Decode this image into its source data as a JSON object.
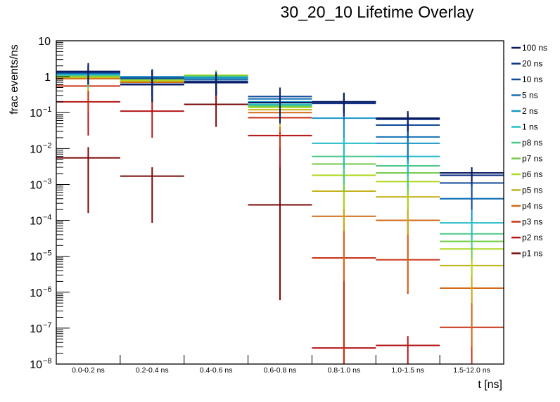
{
  "chart_data": {
    "type": "bar",
    "subtype": "histogram-with-error-bars",
    "title": "30_20_10 Lifetime Overlay",
    "xlabel": "t [ns]",
    "ylabel": "frac events/ns",
    "yscale": "log",
    "ylim": [
      1e-08,
      10
    ],
    "grid": false,
    "legend_position": "right",
    "categories": [
      "0.0-0.2 ns",
      "0.2-0.4 ns",
      "0.4-0.6 ns",
      "0.6-0.8 ns",
      "0.8-1.0 ns",
      "1.0-1.5 ns",
      "1.5-12.0 ns"
    ],
    "y_ticks": [
      {
        "value": 10,
        "base": "10",
        "exp": ""
      },
      {
        "value": 1,
        "base": "1",
        "exp": ""
      },
      {
        "value": 0.1,
        "base": "10",
        "exp": "−1"
      },
      {
        "value": 0.01,
        "base": "10",
        "exp": "−2"
      },
      {
        "value": 0.001,
        "base": "10",
        "exp": "−3"
      },
      {
        "value": 0.0001,
        "base": "10",
        "exp": "−4"
      },
      {
        "value": 1e-05,
        "base": "10",
        "exp": "−5"
      },
      {
        "value": 1e-06,
        "base": "10",
        "exp": "−6"
      },
      {
        "value": 1e-07,
        "base": "10",
        "exp": "−7"
      },
      {
        "value": 1e-08,
        "base": "10",
        "exp": "−8"
      }
    ],
    "series": [
      {
        "name": "100 ns",
        "color": "#0b1a5e",
        "values": [
          1.4,
          0.6,
          0.7,
          0.19,
          0.2,
          0.07,
          0.0021
        ],
        "err_hi": [
          2.4,
          1.6,
          1.3,
          0.5,
          0.36,
          0.11,
          0.003
        ],
        "err_lo": [
          0.6,
          0.2,
          0.3,
          0.05,
          0.1,
          0.03,
          0.0012
        ]
      },
      {
        "name": "20 ns",
        "color": "#0a2e82",
        "values": [
          1.35,
          0.62,
          0.68,
          0.19,
          0.18,
          0.065,
          0.0018
        ],
        "err_hi": [
          2.2,
          1.5,
          1.2,
          0.45,
          0.34,
          0.1,
          0.003
        ],
        "err_lo": [
          0.6,
          0.2,
          0.3,
          0.05,
          0.08,
          0.03,
          0.0009
        ]
      },
      {
        "name": "10 ns",
        "color": "#114a9a",
        "values": [
          1.3,
          0.9,
          0.75,
          0.28,
          0.2,
          0.045,
          0.0011
        ],
        "err_hi": [
          2.1,
          1.5,
          1.2,
          0.5,
          0.34,
          0.09,
          0.0028
        ],
        "err_lo": [
          0.6,
          0.3,
          0.3,
          0.1,
          0.08,
          0.02,
          0.0002
        ]
      },
      {
        "name": "5 ns",
        "color": "#1670b5",
        "values": [
          1.25,
          0.95,
          0.85,
          0.24,
          0.2,
          0.021,
          0.0004
        ],
        "err_hi": [
          2.0,
          1.5,
          1.3,
          0.45,
          0.3,
          0.05,
          0.0011
        ],
        "err_lo": [
          0.6,
          0.3,
          0.3,
          0.1,
          0.06,
          0.005,
          0.0002
        ]
      },
      {
        "name": "2 ns",
        "color": "#1b96c8",
        "values": [
          1.2,
          1.0,
          0.95,
          0.2,
          0.07,
          0.014,
          0.0004
        ],
        "err_hi": [
          2.0,
          1.6,
          1.4,
          0.4,
          0.2,
          0.04,
          0.0011
        ],
        "err_lo": [
          0.6,
          0.3,
          0.3,
          0.1,
          0.02,
          0.004,
          0.0001
        ]
      },
      {
        "name": "1 ns",
        "color": "#25bcc8",
        "values": [
          1.15,
          0.95,
          0.9,
          0.17,
          0.014,
          0.006,
          8.5e-05
        ],
        "err_hi": [
          1.9,
          1.5,
          1.3,
          0.35,
          0.06,
          0.02,
          0.0002
        ],
        "err_lo": [
          0.6,
          0.3,
          0.3,
          0.05,
          0.003,
          0.0017,
          3e-05
        ]
      },
      {
        "name": "p8 ns",
        "color": "#4dc78a",
        "values": [
          1.1,
          0.9,
          1.0,
          0.16,
          0.006,
          0.0033,
          4.2e-05
        ],
        "err_hi": [
          1.8,
          1.4,
          1.4,
          0.35,
          0.02,
          0.01,
          0.00012
        ],
        "err_lo": [
          0.5,
          0.3,
          0.3,
          0.05,
          0.001,
          0.0008,
          1.5e-05
        ]
      },
      {
        "name": "p7 ns",
        "color": "#74cc4a",
        "values": [
          1.05,
          0.85,
          1.05,
          0.15,
          0.0037,
          0.0021,
          2.6e-05
        ],
        "err_hi": [
          1.8,
          1.4,
          1.4,
          0.32,
          0.012,
          0.006,
          8e-05
        ],
        "err_lo": [
          0.5,
          0.3,
          0.3,
          0.05,
          0.0006,
          0.0005,
          8e-06
        ]
      },
      {
        "name": "p6 ns",
        "color": "#afd820",
        "values": [
          1.0,
          0.8,
          1.1,
          0.14,
          0.0018,
          0.0012,
          1.6e-05
        ],
        "err_hi": [
          1.7,
          1.3,
          1.5,
          0.3,
          0.006,
          0.004,
          5e-05
        ],
        "err_lo": [
          0.5,
          0.3,
          0.4,
          0.05,
          0.0002,
          0.0002,
          3e-06
        ]
      },
      {
        "name": "p5 ns",
        "color": "#c4b21c",
        "values": [
          0.95,
          0.75,
          1.1,
          0.12,
          0.00065,
          0.00045,
          5.5e-06
        ],
        "err_hi": [
          1.6,
          1.3,
          1.5,
          0.28,
          0.0025,
          0.0015,
          2e-05
        ],
        "err_lo": [
          0.4,
          0.3,
          0.4,
          0.04,
          5e-05,
          4e-05,
          5e-07
        ]
      },
      {
        "name": "p4 ns",
        "color": "#d26a18",
        "values": [
          0.88,
          0.7,
          1.05,
          0.1,
          0.00013,
          0.0001,
          1.3e-06
        ],
        "err_hi": [
          1.5,
          1.2,
          1.5,
          0.25,
          0.0008,
          0.0005,
          6e-06
        ],
        "err_lo": [
          0.4,
          0.3,
          0.4,
          0.03,
          2e-06,
          1e-06,
          3e-08
        ]
      },
      {
        "name": "p3 ns",
        "color": "#c83214",
        "values": [
          0.55,
          0.6,
          0.9,
          0.072,
          9e-06,
          8e-06,
          1.05e-07
        ],
        "err_hi": [
          1.2,
          1.0,
          1.3,
          0.2,
          0.00025,
          0.0001,
          1.5e-06
        ],
        "err_lo": [
          0.1,
          0.2,
          0.3,
          0.01,
          1e-08,
          9e-07,
          1e-08
        ]
      },
      {
        "name": "p2 ns",
        "color": "#b41414",
        "values": [
          0.2,
          0.11,
          0.85,
          0.023,
          2.8e-08,
          3.3e-08,
          null
        ],
        "err_hi": [
          0.4,
          0.25,
          1.2,
          0.06,
          2.5e-06,
          6e-08,
          null
        ],
        "err_lo": [
          0.023,
          0.02,
          0.25,
          0.003,
          1e-08,
          1e-08,
          null
        ]
      },
      {
        "name": "p1 ns",
        "color": "#7a0808",
        "values": [
          0.0055,
          0.0017,
          0.17,
          0.00027,
          null,
          null,
          null
        ],
        "err_hi": [
          0.011,
          0.003,
          0.3,
          0.003,
          null,
          null,
          null
        ],
        "err_lo": [
          0.00016,
          8.5e-05,
          0.04,
          6e-07,
          null,
          null,
          null
        ]
      }
    ]
  }
}
